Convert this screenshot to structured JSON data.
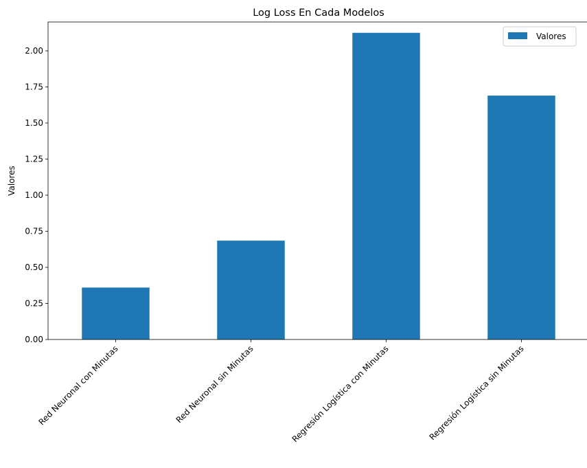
{
  "chart_data": {
    "type": "bar",
    "title": "Log Loss En Cada Modelos",
    "xlabel": "",
    "ylabel": "Valores",
    "categories": [
      "Red Neuronal con Minutas",
      "Red Neuronal sin Minutas",
      "Regresión Logística con Minutas",
      "Regresión Logística sin Minutas"
    ],
    "series": [
      {
        "name": "Valores",
        "values": [
          0.36,
          0.685,
          2.125,
          1.69
        ],
        "color": "#1f77b4"
      }
    ],
    "ylim": [
      0,
      2.2
    ],
    "yticks": [
      "0.00",
      "0.25",
      "0.50",
      "0.75",
      "1.00",
      "1.25",
      "1.50",
      "1.75",
      "2.00"
    ],
    "grid": false,
    "legend_position": "top-right"
  }
}
